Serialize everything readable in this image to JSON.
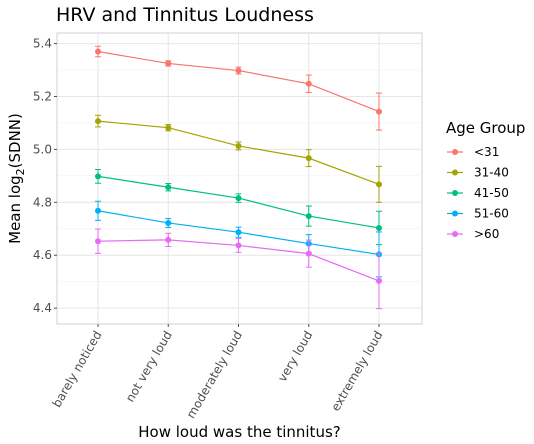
{
  "chart_data": {
    "type": "line",
    "title": "HRV and Tinnitus Loudness",
    "xlabel": "How loud was the tinnitus?",
    "ylabel_prefix": "Mean log",
    "ylabel_subscript": "2",
    "ylabel_suffix": "(SDNN)",
    "categories": [
      "barely noticed",
      "not very loud",
      "moderately loud",
      "very loud",
      "extremely loud"
    ],
    "ylim": [
      4.34,
      5.44
    ],
    "yticks": [
      4.4,
      4.6,
      4.8,
      5.0,
      5.2,
      5.4
    ],
    "ytick_labels": [
      "4.4",
      "4.6",
      "4.8",
      "5.0",
      "5.2",
      "5.4"
    ],
    "grid": true,
    "legend": {
      "title": "Age Group",
      "position": "right"
    },
    "series": [
      {
        "name": "<31",
        "color": "#F8766D",
        "values": [
          5.37,
          5.325,
          5.298,
          5.248,
          5.143
        ],
        "lower": [
          5.35,
          5.315,
          5.285,
          5.215,
          5.073
        ],
        "upper": [
          5.39,
          5.335,
          5.311,
          5.281,
          5.213
        ]
      },
      {
        "name": "31-40",
        "color": "#A3A500",
        "values": [
          5.107,
          5.082,
          5.013,
          4.967,
          4.868
        ],
        "lower": [
          5.085,
          5.07,
          4.998,
          4.935,
          4.8
        ],
        "upper": [
          5.129,
          5.094,
          5.028,
          4.999,
          4.936
        ]
      },
      {
        "name": "41-50",
        "color": "#00BF7D",
        "values": [
          4.898,
          4.857,
          4.816,
          4.748,
          4.703
        ],
        "lower": [
          4.872,
          4.843,
          4.8,
          4.71,
          4.64
        ],
        "upper": [
          4.924,
          4.871,
          4.832,
          4.786,
          4.766
        ]
      },
      {
        "name": "51-60",
        "color": "#00B0F6",
        "values": [
          4.768,
          4.722,
          4.687,
          4.644,
          4.603
        ],
        "lower": [
          4.732,
          4.705,
          4.668,
          4.61,
          4.518
        ],
        "upper": [
          4.804,
          4.739,
          4.706,
          4.678,
          4.688
        ]
      },
      {
        "name": ">60",
        "color": "#E76BF3",
        "values": [
          4.653,
          4.658,
          4.637,
          4.606,
          4.503
        ],
        "lower": [
          4.607,
          4.633,
          4.611,
          4.555,
          4.398
        ],
        "upper": [
          4.699,
          4.683,
          4.663,
          4.657,
          4.608
        ]
      }
    ]
  }
}
